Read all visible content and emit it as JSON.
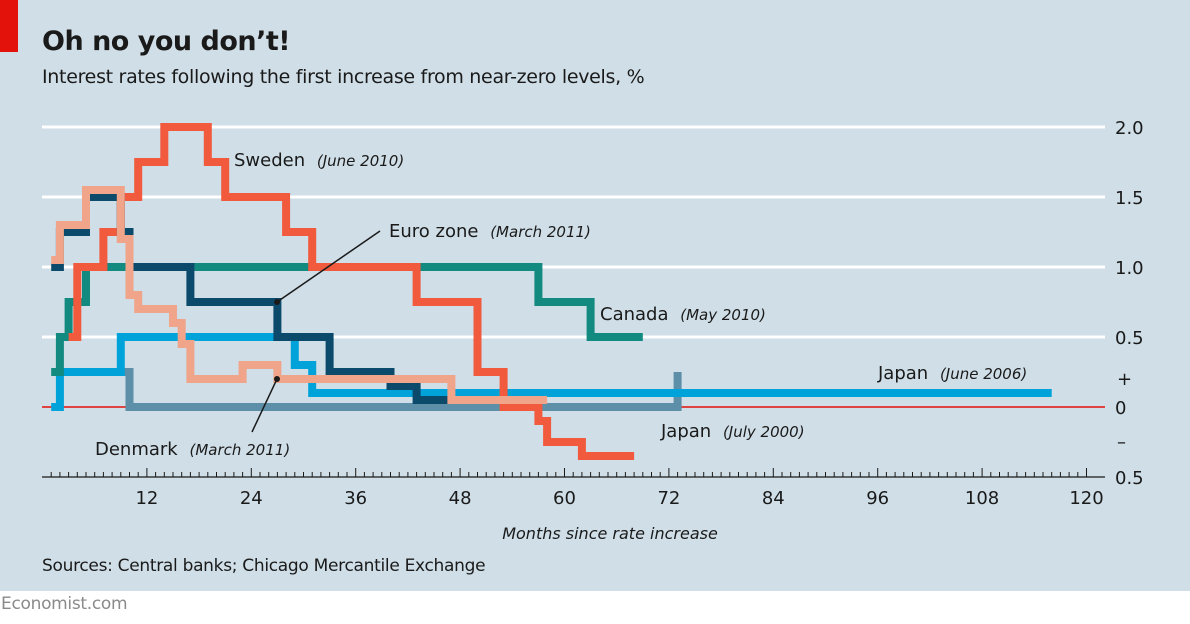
{
  "header": {
    "title": "Oh no you don’t!",
    "subtitle": "Interest rates following the first increase from near-zero levels, %"
  },
  "footer": {
    "sources": "Sources: Central banks; Chicago Mercantile Exchange",
    "brand": "Economist.com"
  },
  "chart_data": {
    "type": "line",
    "step": true,
    "title": "Oh no you don’t!",
    "subtitle": "Interest rates following the first increase from near-zero levels, %",
    "xlabel": "Months since rate increase",
    "ylabel": "%",
    "xlim": [
      0,
      122
    ],
    "ylim": [
      -0.5,
      2.0
    ],
    "x_ticks": [
      12,
      24,
      36,
      48,
      60,
      72,
      84,
      96,
      108,
      120
    ],
    "y_ticks": [
      {
        "value": 2.0,
        "label": "2.0"
      },
      {
        "value": 1.5,
        "label": "1.5"
      },
      {
        "value": 1.0,
        "label": "1.0"
      },
      {
        "value": 0.5,
        "label": "0.5"
      },
      {
        "value": 0,
        "label": "0"
      },
      {
        "value": -0.5,
        "label": "0.5"
      }
    ],
    "y_sign_labels": {
      "plus": "+",
      "minus": "–"
    },
    "grid": true,
    "zero_line_color": "#e3120b",
    "series": [
      {
        "name": "Japan",
        "start": "(July 2000)",
        "color": "#5e8fa9",
        "steps": [
          [
            9,
            0.25
          ],
          [
            10,
            0.15
          ],
          [
            10,
            0
          ],
          [
            73,
            0
          ],
          [
            73,
            0.25
          ]
        ]
      },
      {
        "name": "Japan",
        "start": "(June 2006)",
        "color": "#00a2da",
        "steps": [
          [
            1,
            0
          ],
          [
            2,
            0.25
          ],
          [
            9,
            0.5
          ],
          [
            29,
            0.3
          ],
          [
            31,
            0.1
          ],
          [
            116,
            0.1
          ]
        ]
      },
      {
        "name": "Canada",
        "start": "(May 2010)",
        "color": "#138a80",
        "steps": [
          [
            1,
            0.25
          ],
          [
            2,
            0.5
          ],
          [
            3,
            0.75
          ],
          [
            5,
            1.0
          ],
          [
            57,
            0.75
          ],
          [
            63,
            0.5
          ],
          [
            69,
            0.5
          ]
        ]
      },
      {
        "name": "Sweden",
        "start": "(June 2010)",
        "color": "#f15a3d",
        "steps": [
          [
            3,
            0.5
          ],
          [
            4,
            1.0
          ],
          [
            7,
            1.25
          ],
          [
            9,
            1.5
          ],
          [
            11,
            1.75
          ],
          [
            14,
            2.0
          ],
          [
            19,
            1.75
          ],
          [
            21,
            1.5
          ],
          [
            28,
            1.25
          ],
          [
            31,
            1.0
          ],
          [
            43,
            0.75
          ],
          [
            50,
            0.25
          ],
          [
            53,
            0
          ],
          [
            57,
            -0.1
          ],
          [
            58,
            -0.25
          ],
          [
            62,
            -0.35
          ],
          [
            68,
            -0.35
          ]
        ]
      },
      {
        "name": "Euro zone",
        "start": "(March 2011)",
        "color": "#0c4a6b",
        "steps": [
          [
            1,
            1.0
          ],
          [
            2,
            1.25
          ],
          [
            5,
            1.5
          ],
          [
            9,
            1.25
          ],
          [
            10,
            1.0
          ],
          [
            17,
            0.75
          ],
          [
            27,
            0.5
          ],
          [
            33,
            0.25
          ],
          [
            40,
            0.15
          ],
          [
            43,
            0.05
          ],
          [
            47,
            0.05
          ]
        ]
      },
      {
        "name": "Denmark",
        "start": "(March 2011)",
        "color": "#f0a48a",
        "steps": [
          [
            1,
            1.05
          ],
          [
            2,
            1.3
          ],
          [
            5,
            1.55
          ],
          [
            9,
            1.2
          ],
          [
            10,
            0.8
          ],
          [
            11,
            0.7
          ],
          [
            15,
            0.6
          ],
          [
            16,
            0.45
          ],
          [
            17,
            0.2
          ],
          [
            23,
            0.3
          ],
          [
            27,
            0.2
          ],
          [
            47,
            0.05
          ],
          [
            58,
            0.05
          ]
        ]
      }
    ],
    "annotations": [
      {
        "series": "Sweden",
        "name": "Sweden",
        "start": "(June 2010)",
        "position": "above-right of peak"
      },
      {
        "series": "Euro zone",
        "name": "Euro zone",
        "start": "(March 2011)",
        "leader_line": true
      },
      {
        "series": "Canada",
        "name": "Canada",
        "start": "(May 2010)",
        "position": "right of end"
      },
      {
        "series": "Japan (June 2006)",
        "name": "Japan",
        "start": "(June 2006)",
        "position": "above right end"
      },
      {
        "series": "Japan (July 2000)",
        "name": "Japan",
        "start": "(July 2000)",
        "position": "below"
      },
      {
        "series": "Denmark",
        "name": "Denmark",
        "start": "(March 2011)",
        "leader_line": true
      }
    ]
  }
}
